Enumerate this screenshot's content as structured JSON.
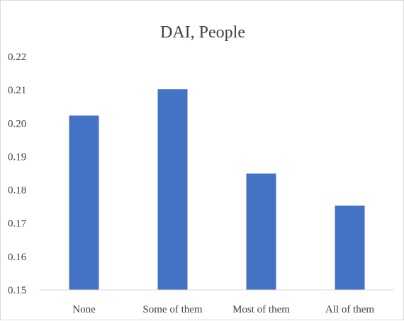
{
  "chart_data": {
    "type": "bar",
    "title": "DAI, People",
    "xlabel": "",
    "ylabel": "",
    "categories": [
      "None",
      "Some of them",
      "Most of them",
      "All of them"
    ],
    "values": [
      0.2023,
      0.2102,
      0.1849,
      0.1753
    ],
    "ylim": [
      0.15,
      0.22
    ],
    "yticks": [
      "0.15",
      "0.16",
      "0.17",
      "0.18",
      "0.19",
      "0.20",
      "0.21",
      "0.22"
    ],
    "grid": false,
    "legend": "none",
    "bar_color": "#4472C4",
    "axis_color": "#d9d9d9"
  }
}
